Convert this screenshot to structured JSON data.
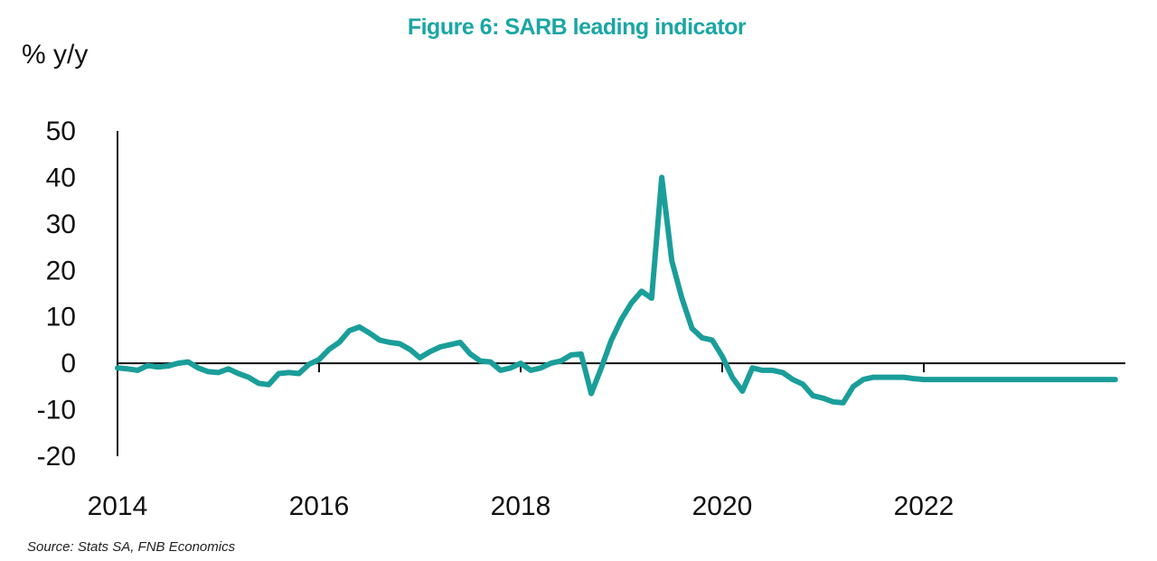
{
  "chart_data": {
    "type": "line",
    "title": "Figure 6: SARB leading indicator",
    "ylabel": "% y/y",
    "xlabel": "",
    "source": "Source: Stats SA, FNB Economics",
    "ylim": [
      -20,
      50
    ],
    "xlim": [
      2014,
      2024
    ],
    "y_ticks": [
      50,
      40,
      30,
      20,
      10,
      0,
      -10,
      -20
    ],
    "y_tick_labels": [
      "50",
      "40",
      "30",
      "20",
      "10",
      "0",
      "-10",
      "-20"
    ],
    "x_ticks": [
      2014,
      2016,
      2018,
      2020,
      2022
    ],
    "x_tick_labels": [
      "2014",
      "2016",
      "2018",
      "2020",
      "2022"
    ],
    "grid": false,
    "legend": "none",
    "line_color": "#1a9e9a",
    "title_color": "#1aa6a3",
    "series": [
      {
        "x": [
          2014.0,
          2014.1,
          2014.2,
          2014.3,
          2014.4,
          2014.5,
          2014.6,
          2014.7,
          2014.8,
          2014.9,
          2015.0,
          2015.1,
          2015.2,
          2015.3,
          2015.4,
          2015.5,
          2015.6,
          2015.7,
          2015.8,
          2015.9,
          2016.0,
          2016.1,
          2016.2,
          2016.3,
          2016.4,
          2016.5,
          2016.6,
          2016.7,
          2016.8,
          2016.9,
          2017.0,
          2017.1,
          2017.2,
          2017.3,
          2017.4,
          2017.5,
          2017.6,
          2017.7,
          2017.8,
          2017.9,
          2018.0,
          2018.1,
          2018.2,
          2018.3,
          2018.4,
          2018.5,
          2018.6,
          2018.7,
          2018.8,
          2018.9,
          2019.0,
          2019.1,
          2019.2,
          2019.3,
          2019.4,
          2019.5,
          2019.6,
          2019.7,
          2019.8,
          2019.9,
          2020.0,
          2020.1,
          2020.2,
          2020.3,
          2020.4,
          2020.5,
          2020.6,
          2020.7,
          2020.8,
          2020.9,
          2021.0,
          2021.1,
          2021.2,
          2021.3,
          2021.4,
          2021.5,
          2021.6,
          2021.7,
          2021.8,
          2021.9,
          2022.0,
          2022.1,
          2022.2,
          2022.3,
          2022.4,
          2022.5,
          2022.6,
          2022.7,
          2022.8,
          2022.9,
          2023.0,
          2023.1,
          2023.2,
          2023.3,
          2023.4,
          2023.5,
          2023.6,
          2023.7,
          2023.8,
          2023.9
        ],
        "y": [
          -1.0,
          -1.2,
          -1.5,
          -0.5,
          -0.8,
          -0.6,
          0.0,
          0.3,
          -1.0,
          -1.8,
          -2.0,
          -1.2,
          -2.2,
          -3.0,
          -4.3,
          -4.6,
          -2.2,
          -2.0,
          -2.2,
          -0.2,
          0.8,
          3.0,
          4.5,
          7.0,
          7.8,
          6.5,
          5.0,
          4.5,
          4.2,
          3.0,
          1.2,
          2.5,
          3.5,
          4.0,
          4.5,
          2.0,
          0.5,
          0.3,
          -1.5,
          -1.0,
          0.0,
          -1.5,
          -1.0,
          0.0,
          0.5,
          1.8,
          2.0,
          -6.5,
          -1.0,
          5.0,
          9.5,
          13.0,
          15.5,
          14.0,
          40.0,
          22.0,
          14.0,
          7.5,
          5.5,
          5.0,
          1.5,
          -3.0,
          -6.0,
          -1.0,
          -1.5,
          -1.5,
          -2.0,
          -3.5,
          -4.5,
          -7.0,
          -7.5,
          -8.3,
          -8.5,
          -5.0,
          -3.5,
          -3.0,
          -3.0,
          -3.0,
          -3.0,
          -3.3,
          -3.5,
          -3.5,
          -3.5,
          -3.5,
          -3.5,
          -3.5,
          -3.5,
          -3.5,
          -3.5,
          -3.5,
          -3.5,
          -3.5,
          -3.5,
          -3.5,
          -3.5,
          -3.5,
          -3.5,
          -3.5,
          -3.5,
          -3.5
        ]
      }
    ]
  }
}
